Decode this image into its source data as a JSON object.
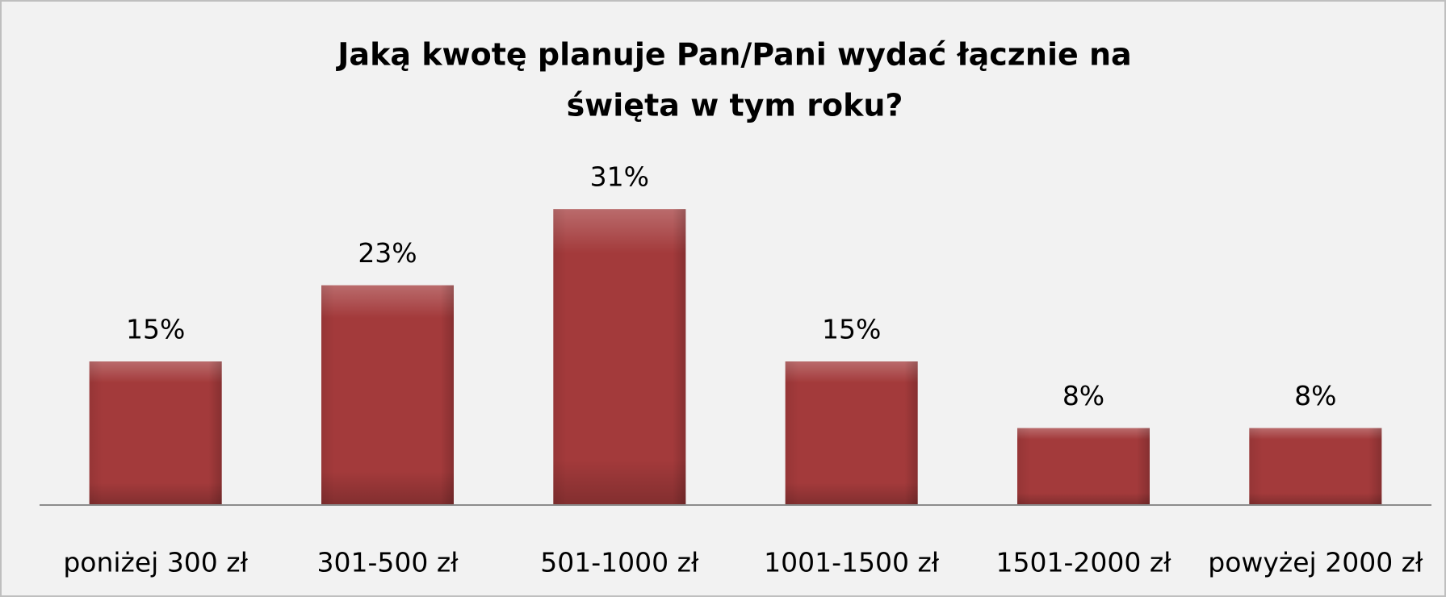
{
  "chart_data": {
    "type": "bar",
    "title": [
      "Jaką kwotę planuje Pan/Pani wydać łącznie na",
      "święta w tym roku?"
    ],
    "categories": [
      "poniżej 300 zł",
      "301-500 zł",
      "501-1000 zł",
      "1001-1500 zł",
      "1501-2000 zł",
      "powyżej 2000 zł"
    ],
    "values": [
      15,
      23,
      31,
      15,
      8,
      8
    ],
    "value_labels": [
      "15%",
      "23%",
      "31%",
      "15%",
      "8%",
      "8%"
    ],
    "color": "#a33a3b"
  }
}
